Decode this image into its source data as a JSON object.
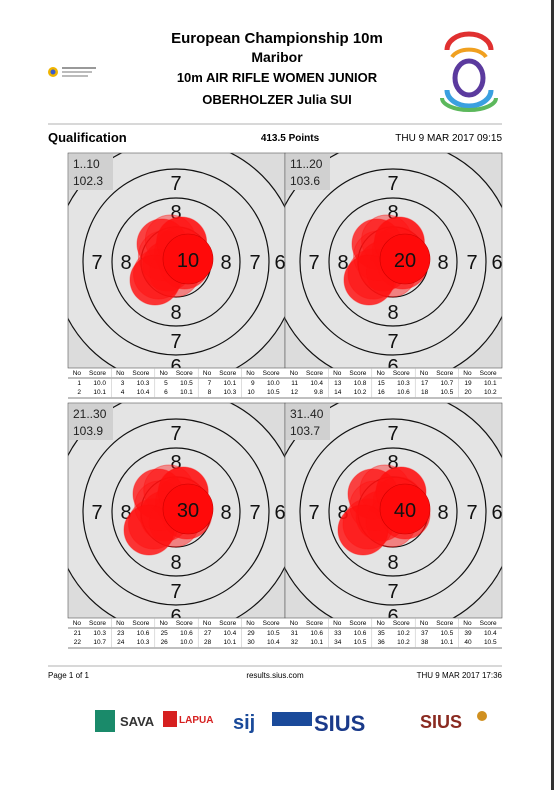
{
  "header": {
    "title": "European Championship 10m",
    "venue": "Maribor",
    "event": "10m AIR RIFLE WOMEN JUNIOR",
    "athlete": "OBERHOLZER Julia SUI"
  },
  "summary": {
    "stage": "Qualification",
    "points": "413.5 Points",
    "datetime": "THU 9 MAR 2017 09:15"
  },
  "ring_labels": [
    "6",
    "7",
    "8"
  ],
  "table_headers": [
    "No",
    "Score"
  ],
  "targets": [
    {
      "range": "1..10",
      "total": "102.3",
      "series_label": "10",
      "shots": [
        {
          "no": 1,
          "score": "10.0"
        },
        {
          "no": 2,
          "score": "10.1"
        },
        {
          "no": 3,
          "score": "10.3"
        },
        {
          "no": 4,
          "score": "10.4"
        },
        {
          "no": 5,
          "score": "10.5"
        },
        {
          "no": 6,
          "score": "10.1"
        },
        {
          "no": 7,
          "score": "10.1"
        },
        {
          "no": 8,
          "score": "10.3"
        },
        {
          "no": 9,
          "score": "10.0"
        },
        {
          "no": 10,
          "score": "10.5"
        }
      ]
    },
    {
      "range": "11..20",
      "total": "103.6",
      "series_label": "20",
      "shots": [
        {
          "no": 11,
          "score": "10.4"
        },
        {
          "no": 12,
          "score": "9.8"
        },
        {
          "no": 13,
          "score": "10.8"
        },
        {
          "no": 14,
          "score": "10.2"
        },
        {
          "no": 15,
          "score": "10.3"
        },
        {
          "no": 16,
          "score": "10.6"
        },
        {
          "no": 17,
          "score": "10.7"
        },
        {
          "no": 18,
          "score": "10.5"
        },
        {
          "no": 19,
          "score": "10.1"
        },
        {
          "no": 20,
          "score": "10.2"
        }
      ]
    },
    {
      "range": "21..30",
      "total": "103.9",
      "series_label": "30",
      "shots": [
        {
          "no": 21,
          "score": "10.3"
        },
        {
          "no": 22,
          "score": "10.7"
        },
        {
          "no": 23,
          "score": "10.6"
        },
        {
          "no": 24,
          "score": "10.3"
        },
        {
          "no": 25,
          "score": "10.6"
        },
        {
          "no": 26,
          "score": "10.0"
        },
        {
          "no": 27,
          "score": "10.4"
        },
        {
          "no": 28,
          "score": "10.1"
        },
        {
          "no": 29,
          "score": "10.5"
        },
        {
          "no": 30,
          "score": "10.4"
        }
      ]
    },
    {
      "range": "31..40",
      "total": "103.7",
      "series_label": "40",
      "shots": [
        {
          "no": 31,
          "score": "10.6"
        },
        {
          "no": 32,
          "score": "10.1"
        },
        {
          "no": 33,
          "score": "10.6"
        },
        {
          "no": 34,
          "score": "10.5"
        },
        {
          "no": 35,
          "score": "10.2"
        },
        {
          "no": 36,
          "score": "10.2"
        },
        {
          "no": 37,
          "score": "10.5"
        },
        {
          "no": 38,
          "score": "10.1"
        },
        {
          "no": 39,
          "score": "10.4"
        },
        {
          "no": 40,
          "score": "10.5"
        }
      ]
    }
  ],
  "footer": {
    "page": "Page 1 of 1",
    "url": "results.sius.com",
    "datetime": "THU 9 MAR 2017 17:36"
  },
  "sponsors": [
    "SAVA",
    "LAPUA",
    "sij",
    "SIUS"
  ],
  "sius_logo": "SIUS"
}
